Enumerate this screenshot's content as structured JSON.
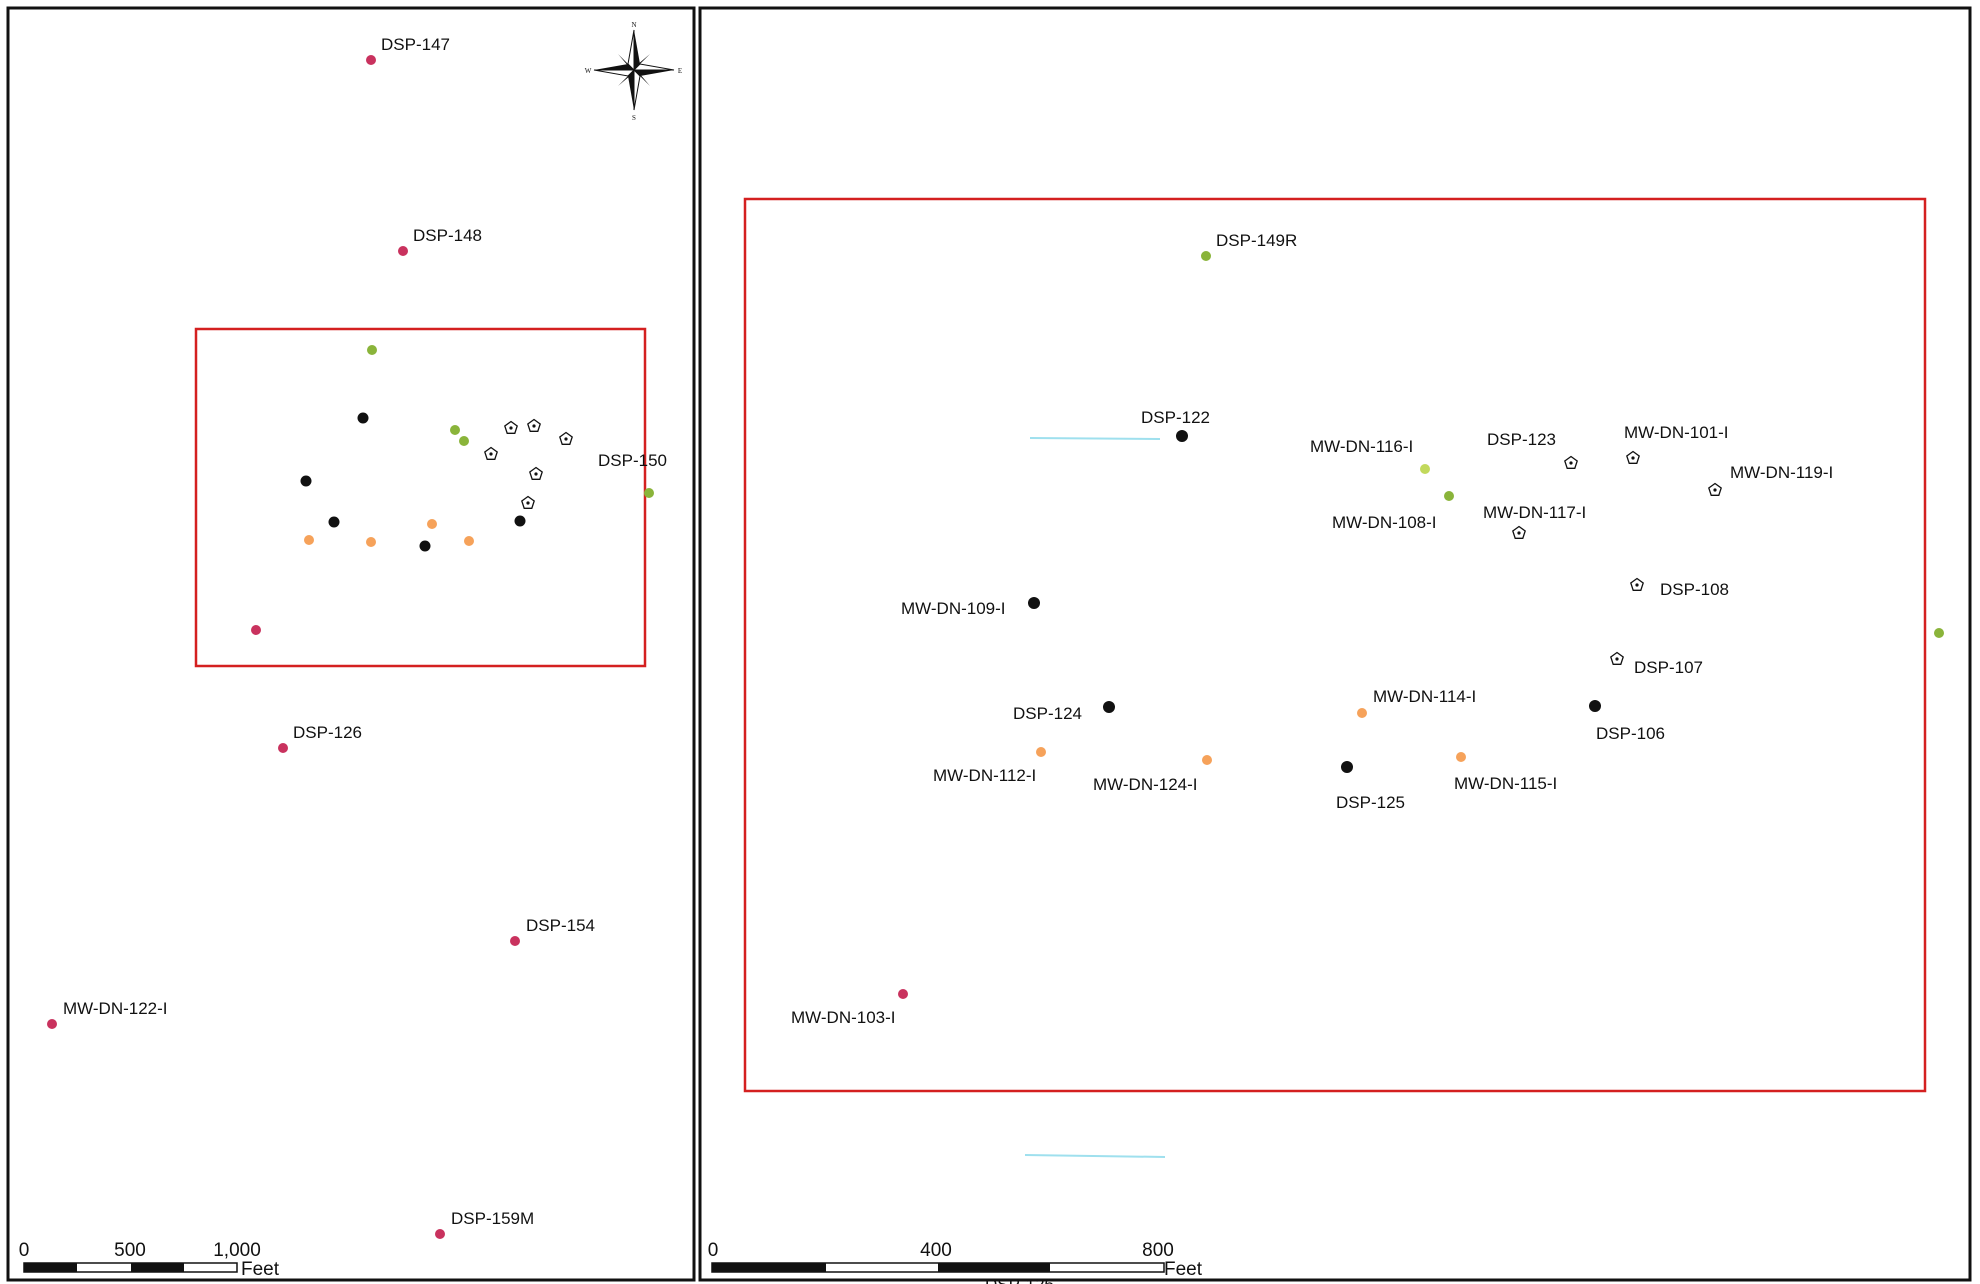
{
  "colors": {
    "monitoring_well": "#c9325e",
    "green_well": "#8ab43a",
    "black_well": "#111111",
    "orange_well": "#f6a25a",
    "frame_red": "#d42020",
    "frame_black": "#111111"
  },
  "icons": {
    "compass": "north-arrow-icon",
    "pentagon": "pentagon-well-icon"
  },
  "overview_map": {
    "compass": {
      "n": "N",
      "s": "S",
      "e": "E",
      "w": "W"
    },
    "labels": {
      "dsp147": "DSP-147",
      "dsp148": "DSP-148",
      "dsp150": "DSP-150",
      "dsp126": "DSP-126",
      "dsp154": "DSP-154",
      "mwdn122": "MW-DN-122-I",
      "dsp159m": "DSP-159M"
    },
    "scale": {
      "t0": "0",
      "t1": "500",
      "t2": "1,000",
      "unit": "Feet"
    }
  },
  "detail_map": {
    "labels": {
      "dsp149r": "DSP-149R",
      "dsp122": "DSP-122",
      "mwdn116": "MW-DN-116-I",
      "dsp123": "DSP-123",
      "mwdn101": "MW-DN-101-I",
      "mwdn119": "MW-DN-119-I",
      "mwdn108": "MW-DN-108-I",
      "mwdn117": "MW-DN-117-I",
      "dsp108": "DSP-108",
      "mwdn109": "MW-DN-109-I",
      "dsp107": "DSP-107",
      "mwdn114": "MW-DN-114-I",
      "dsp124": "DSP-124",
      "dsp106": "DSP-106",
      "mwdn112": "MW-DN-112-I",
      "mwdn124": "MW-DN-124-I",
      "dsp125": "DSP-125",
      "mwdn115": "MW-DN-115-I",
      "mwdn103": "MW-DN-103-I"
    },
    "scale": {
      "t0": "0",
      "t1": "400",
      "t2": "800",
      "unit": "Feet"
    }
  },
  "cutoff_label": "DSP-126"
}
